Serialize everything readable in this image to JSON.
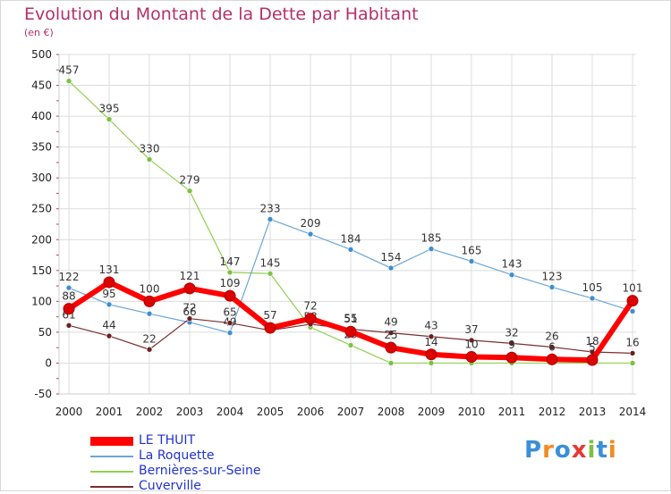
{
  "chart_data": {
    "type": "line",
    "title": "Evolution du Montant de la Dette par Habitant",
    "subtitle": "(en €)",
    "x": [
      "2000",
      "2001",
      "2002",
      "2003",
      "2004",
      "2005",
      "2006",
      "2007",
      "2008",
      "2009",
      "2010",
      "2011",
      "2012",
      "2013",
      "2014"
    ],
    "ylim": [
      -50,
      500
    ],
    "yticks": [
      -50,
      0,
      50,
      100,
      150,
      200,
      250,
      300,
      350,
      400,
      450,
      500
    ],
    "grid": true,
    "legend_position": "bottom-left",
    "series": [
      {
        "name": "Bernières-sur-Seine",
        "color": "#8fd14f",
        "marker": "#7cc242",
        "width": 1.2,
        "r": 3,
        "values": [
          457,
          395,
          330,
          279,
          147,
          145,
          58,
          29,
          0,
          0,
          0,
          0,
          0,
          0,
          0
        ],
        "labels": [
          "457",
          "395",
          "330",
          "279",
          "147",
          "145",
          "58",
          "29",
          "",
          "",
          "",
          "",
          "",
          "",
          ""
        ]
      },
      {
        "name": "La Roquette",
        "color": "#6aa6d8",
        "marker": "#3d8fd1",
        "width": 1.2,
        "r": 3,
        "values": [
          122,
          95,
          80,
          66,
          49,
          233,
          209,
          184,
          154,
          185,
          165,
          143,
          123,
          105,
          84
        ],
        "labels": [
          "122",
          "95",
          "",
          "66",
          "49",
          "233",
          "209",
          "184",
          "154",
          "185",
          "165",
          "143",
          "123",
          "105",
          ""
        ]
      },
      {
        "name": "Cuverville",
        "color": "#7a2e2e",
        "marker": "#6b1f1f",
        "width": 1.2,
        "r": 3,
        "values": [
          61,
          44,
          22,
          72,
          65,
          53,
          63,
          55,
          49,
          43,
          37,
          32,
          26,
          18,
          16
        ],
        "labels": [
          "61",
          "44",
          "22",
          "72",
          "65",
          "",
          "",
          "55",
          "49",
          "43",
          "37",
          "32",
          "26",
          "18",
          "16"
        ]
      },
      {
        "name": "LE THUIT",
        "color": "#ff0000",
        "marker": "#dd0000",
        "width": 6,
        "r": 6,
        "values": [
          88,
          131,
          100,
          121,
          109,
          57,
          72,
          51,
          25,
          14,
          10,
          9,
          6,
          5,
          101
        ],
        "labels": [
          "88",
          "131",
          "100",
          "121",
          "109",
          "57",
          "72",
          "51",
          "25",
          "14",
          "10",
          "9",
          "6",
          "5",
          "101"
        ]
      }
    ],
    "legend": [
      "LE THUIT",
      "La Roquette",
      "Bernières-sur-Seine",
      "Cuverville"
    ],
    "legend_colors": [
      "#ff0000",
      "#6aa6d8",
      "#8fd14f",
      "#7a2e2e"
    ]
  },
  "brand": {
    "text": "Proxiti",
    "colors": [
      "#3a8fd8",
      "#f08a24",
      "#3a8fd8",
      "#e53935",
      "#7cc242",
      "#3a8fd8",
      "#f08a24"
    ]
  }
}
